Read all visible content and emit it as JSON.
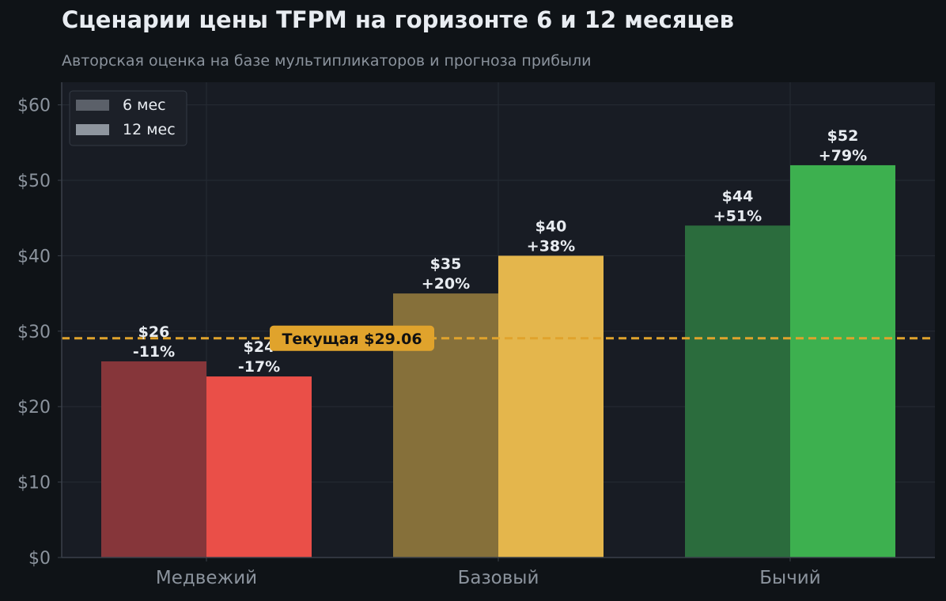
{
  "title": "Сценарии цены TFPM на горизонте 6 и 12 месяцев",
  "subtitle": "Авторская оценка на базе мультипликаторов и прогноза прибыли",
  "chart_data": {
    "type": "bar",
    "title": "Сценарии цены TFPM на горизонте 6 и 12 месяцев",
    "subtitle": "Авторская оценка на базе мультипликаторов и прогноза прибыли",
    "categories": [
      "Медвежий",
      "Базовый",
      "Бычий"
    ],
    "series": [
      {
        "name": "6 мес",
        "values": [
          26,
          35,
          44
        ],
        "labels": [
          "$26\n-11%",
          "$35\n+20%",
          "$44\n+51%"
        ],
        "colors": [
          "#86363a",
          "#86703a",
          "#2b6c3d"
        ]
      },
      {
        "name": "12 мес",
        "values": [
          24,
          40,
          52
        ],
        "labels": [
          "$24\n-17%",
          "$40\n+38%",
          "$52\n+79%"
        ],
        "colors": [
          "#ea4f48",
          "#e4b64c",
          "#3db04f"
        ]
      }
    ],
    "legend_colors": [
      "#5b6069",
      "#8e959e"
    ],
    "ylim": [
      0,
      63
    ],
    "yticks": [
      0,
      10,
      20,
      30,
      40,
      50,
      60
    ],
    "ytick_labels": [
      "$0",
      "$10",
      "$20",
      "$30",
      "$40",
      "$50",
      "$60"
    ],
    "reference_line": {
      "value": 29.06,
      "label": "Текущая $29.06",
      "color": "#e0a32c"
    },
    "grid": true,
    "legend_position": "top-left",
    "xlabel": "",
    "ylabel": ""
  }
}
